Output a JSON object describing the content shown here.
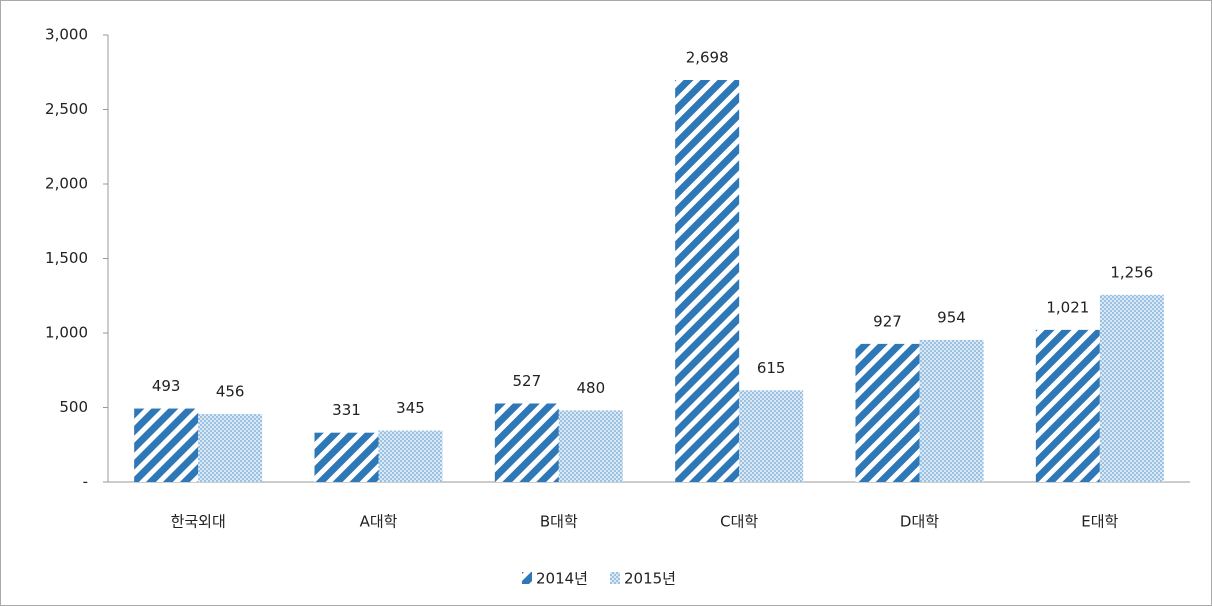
{
  "chart_data": {
    "type": "bar",
    "categories": [
      "한국외대",
      "A대학",
      "B대학",
      "C대학",
      "D대학",
      "E대학"
    ],
    "series": [
      {
        "name": "2014년",
        "color": "#2e78b7",
        "pattern": "diagonal",
        "values": [
          493,
          331,
          527,
          2698,
          927,
          1021
        ],
        "value_labels": [
          "493",
          "331",
          "527",
          "2,698",
          "927",
          "1,021"
        ]
      },
      {
        "name": "2015년",
        "color": "#6fa7d6",
        "pattern": "dots",
        "values": [
          456,
          345,
          480,
          615,
          954,
          1256
        ],
        "value_labels": [
          "456",
          "345",
          "480",
          "615",
          "954",
          "1,256"
        ]
      }
    ],
    "ylim": [
      0,
      3000
    ],
    "yticks": [
      {
        "value": 0,
        "label": "-"
      },
      500,
      {
        "value": 1000,
        "label": "1,000"
      },
      {
        "value": 1500,
        "label": "1,500"
      },
      {
        "value": 2000,
        "label": "2,000"
      },
      {
        "value": 2500,
        "label": "2,500"
      },
      {
        "value": 3000,
        "label": "3,000"
      }
    ],
    "grid": false,
    "legend": "bottom"
  }
}
